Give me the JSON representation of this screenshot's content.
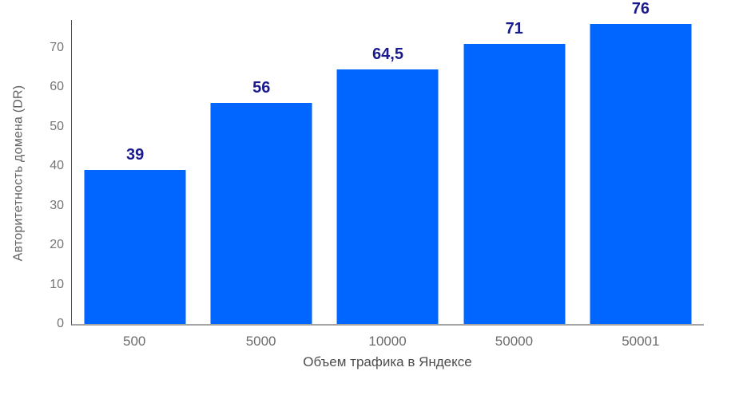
{
  "chart_data": {
    "type": "bar",
    "title": "",
    "categories": [
      "500",
      "5000",
      "10000",
      "50000",
      "50001"
    ],
    "values": [
      39,
      56,
      64.5,
      71,
      76
    ],
    "value_labels": [
      "39",
      "56",
      "64,5",
      "71",
      "76"
    ],
    "xlabel": "Объем трафика в Яндексе",
    "ylabel": "Авторитетность домена (DR)",
    "yticks": [
      0,
      10,
      20,
      30,
      40,
      50,
      60,
      70
    ],
    "ylim": [
      0,
      77.5
    ],
    "grid": false,
    "legend": "none",
    "colors": {
      "bar": "#0066ff",
      "value_label": "#1a1a8f",
      "tick_label": "#757575",
      "axis_title": "#4d4d4d",
      "y_axis_line": "#4f4f4f",
      "x_axis_line": "#a3a3a3",
      "background": "#ffffff"
    }
  }
}
